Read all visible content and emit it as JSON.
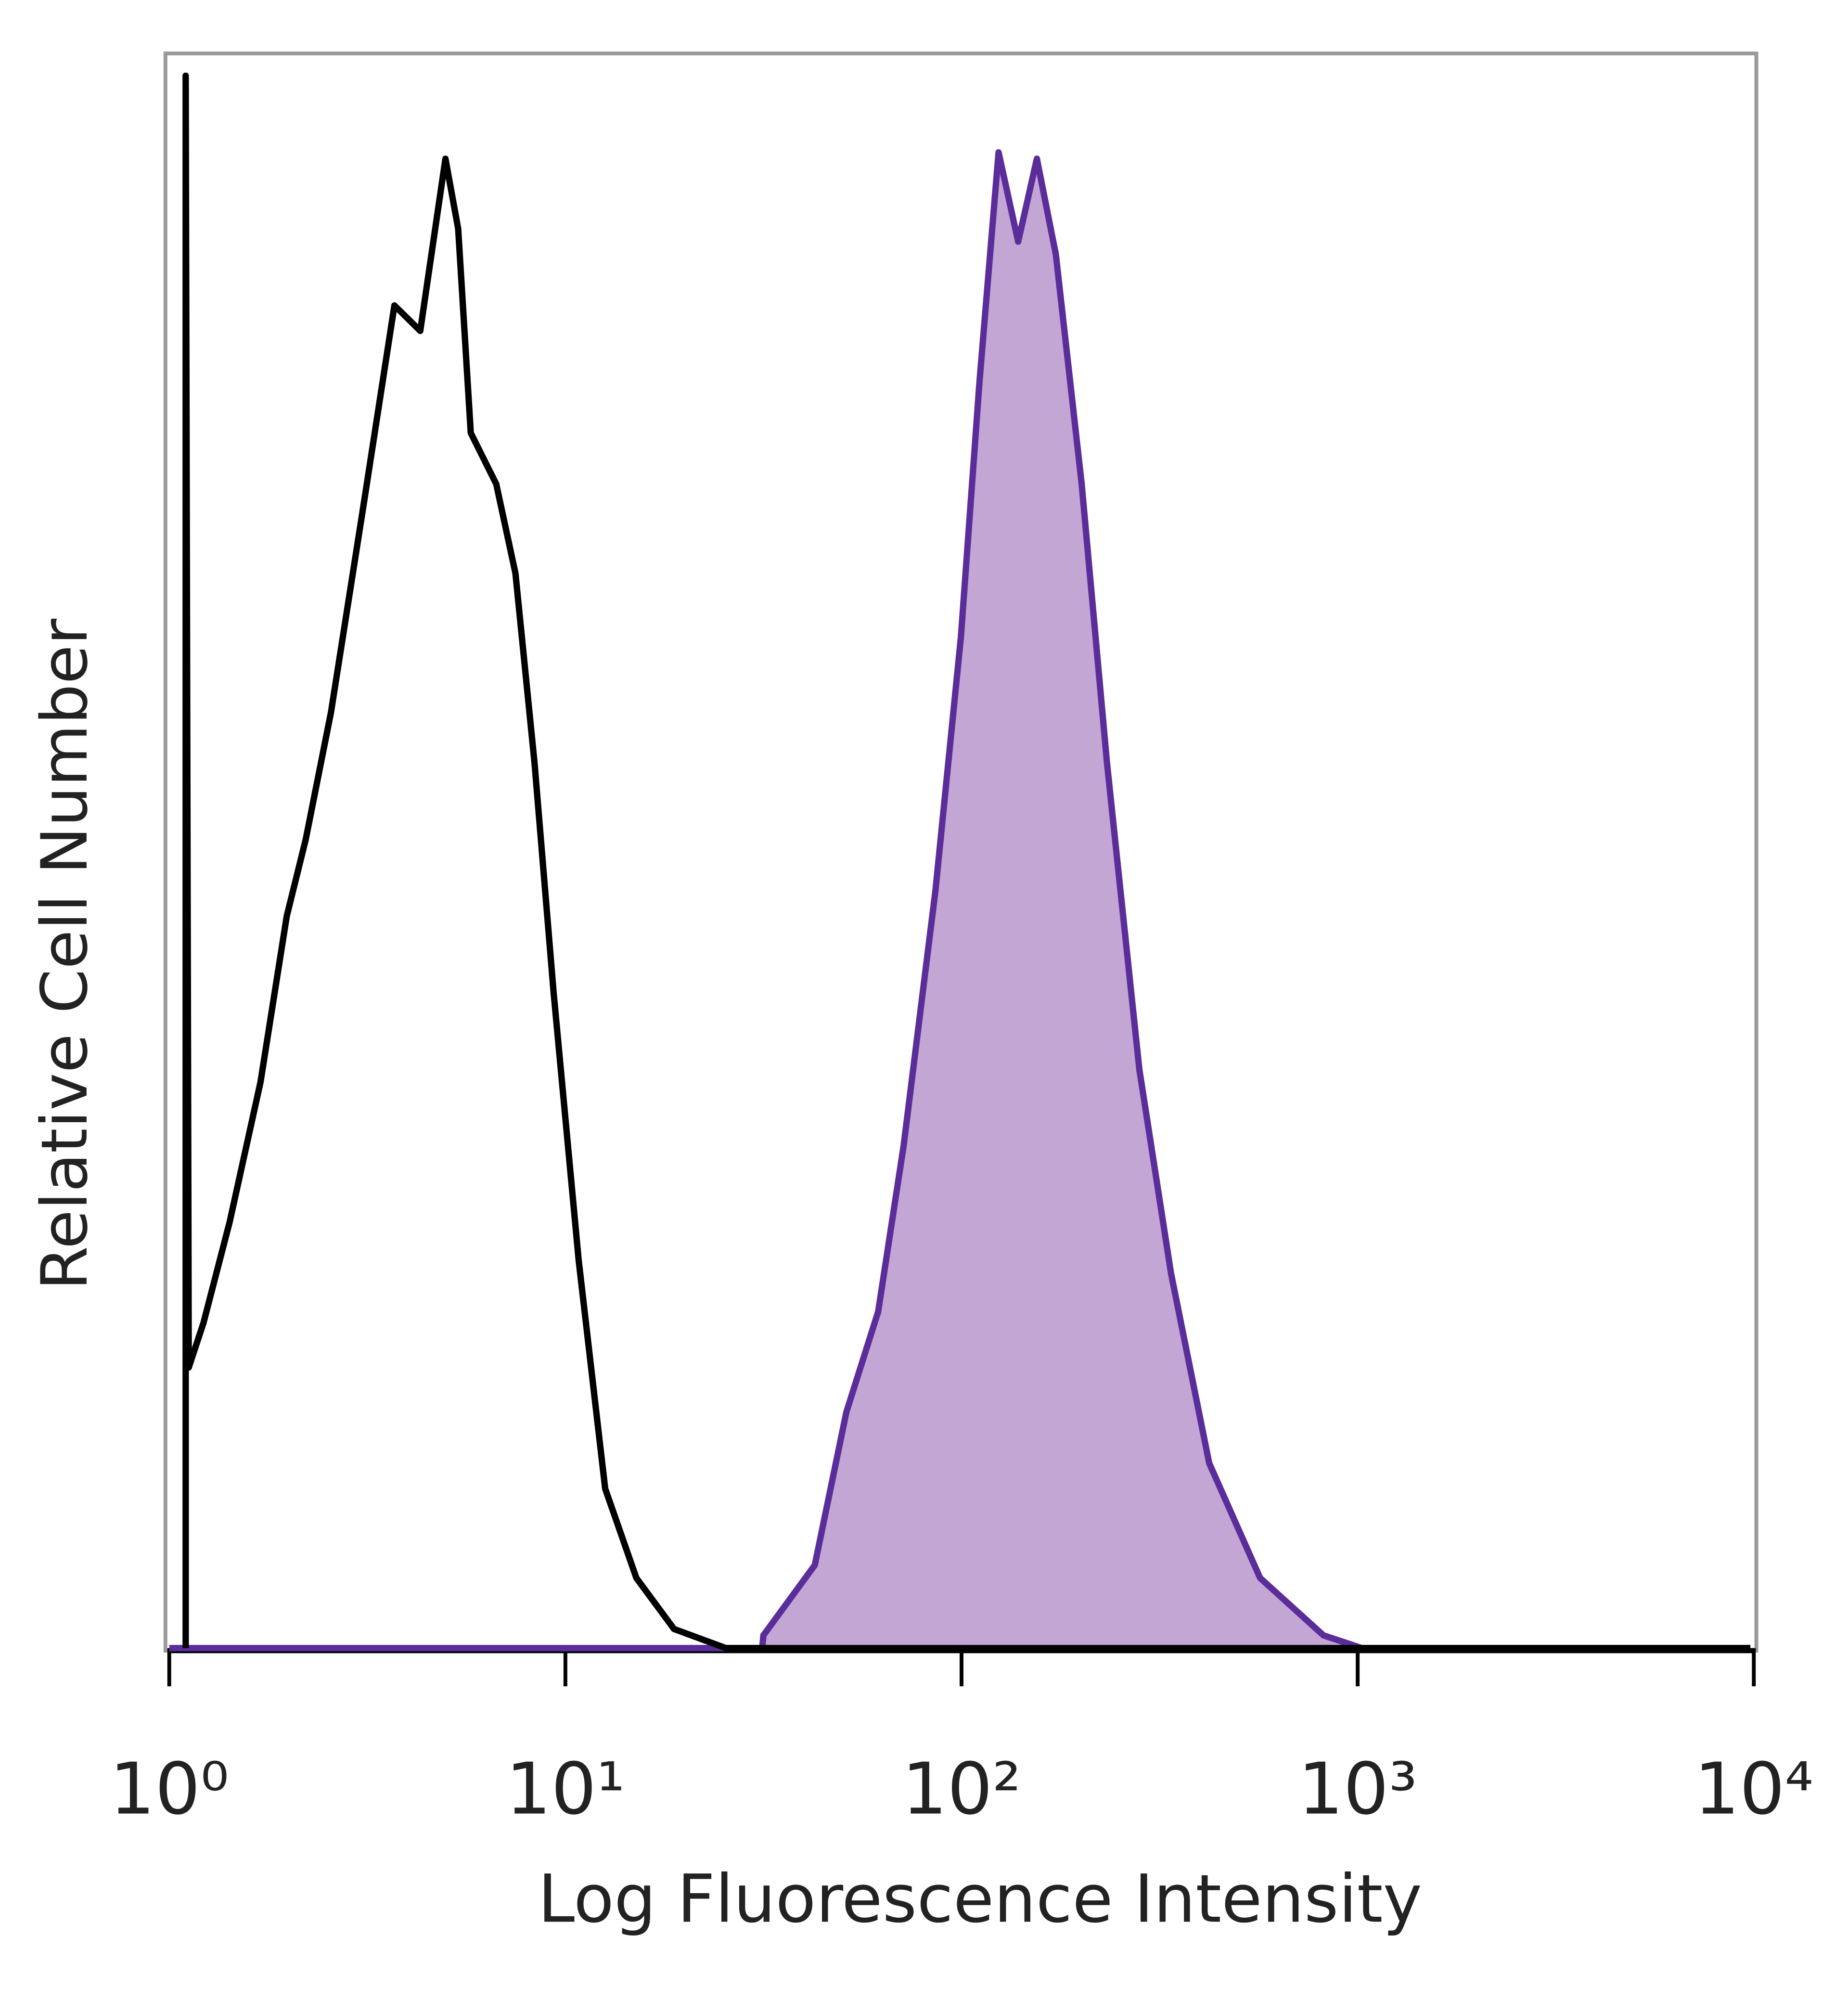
{
  "chart_data": {
    "type": "line",
    "xlabel": "Log Fluorescence Intensity",
    "ylabel": "Relative Cell Number",
    "xscale": "log",
    "xlim": [
      1,
      10000
    ],
    "xticks": [
      {
        "value": 1,
        "label": "10⁰"
      },
      {
        "value": 10,
        "label": "10¹"
      },
      {
        "value": 100,
        "label": "10²"
      },
      {
        "value": 1000,
        "label": "10³"
      },
      {
        "value": 10000,
        "label": "10⁴"
      }
    ],
    "ylim": [
      0,
      100
    ],
    "series": [
      {
        "color": "#5b2d9b",
        "fill": "#c4a6d4",
        "x": [
          1,
          31.4,
          31.6,
          42.6,
          51.2,
          61.6,
          71.4,
          85.9,
          99.6,
          111,
          124,
          139,
          155,
          173,
          201,
          233,
          281,
          338,
          422,
          567,
          820,
          1024,
          9800
        ],
        "values": [
          0,
          0,
          0.8,
          5.2,
          14.8,
          21.1,
          31.5,
          47.5,
          63.4,
          79.4,
          93.8,
          88.2,
          93.4,
          87.4,
          73.0,
          55.5,
          36.3,
          23.5,
          11.6,
          4.4,
          0.8,
          0,
          0
        ]
      },
      {
        "color": "#000000",
        "x": [
          1.1,
          1.1,
          1.12,
          1.22,
          1.42,
          1.7,
          1.98,
          2.21,
          2.56,
          3.08,
          3.7,
          4.3,
          4.98,
          5.36,
          5.77,
          6.69,
          7.48,
          8.36,
          9.34,
          10.8,
          12.6,
          15.1,
          18.8,
          25.4,
          9800
        ],
        "values": [
          0,
          98.6,
          17.6,
          20.4,
          26.7,
          35.5,
          45.9,
          50.7,
          58.7,
          71.4,
          84.2,
          82.6,
          93.4,
          89.0,
          76.2,
          73.0,
          67.4,
          55.5,
          41.1,
          24.3,
          10.0,
          4.4,
          1.2,
          0,
          0
        ]
      }
    ]
  }
}
